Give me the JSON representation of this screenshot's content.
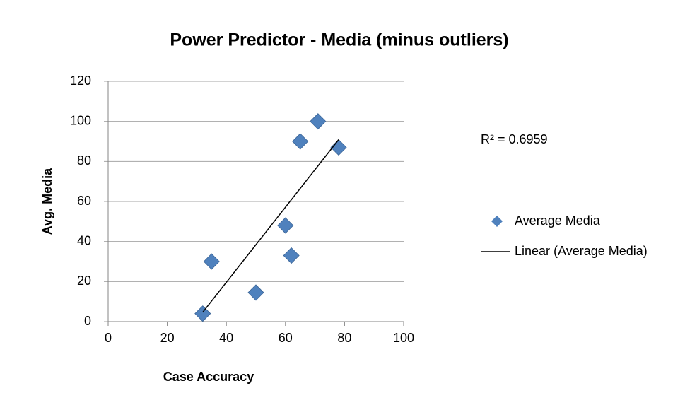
{
  "chart_data": {
    "type": "scatter",
    "title": "Power Predictor - Media (minus outliers)",
    "x_label": "Case Accuracy",
    "y_label": "Avg. Media",
    "series": [
      {
        "name": "Average Media",
        "color": "#4f81bd",
        "x": [
          32,
          35,
          50,
          60,
          62,
          65,
          71,
          78
        ],
        "values": [
          4,
          30,
          14.5,
          48,
          33,
          90,
          100,
          87
        ]
      }
    ],
    "trendline": {
      "name": "Linear (Average Media)",
      "color": "#000000"
    },
    "annotations": [
      "R² = 0.6959"
    ],
    "xlim": [
      0,
      100
    ],
    "xticks": [
      0,
      20,
      40,
      60,
      80,
      100
    ],
    "ylim": [
      0,
      120
    ],
    "yticks": [
      0,
      20,
      40,
      60,
      80,
      100,
      120
    ],
    "grid": true,
    "legend": "right"
  }
}
